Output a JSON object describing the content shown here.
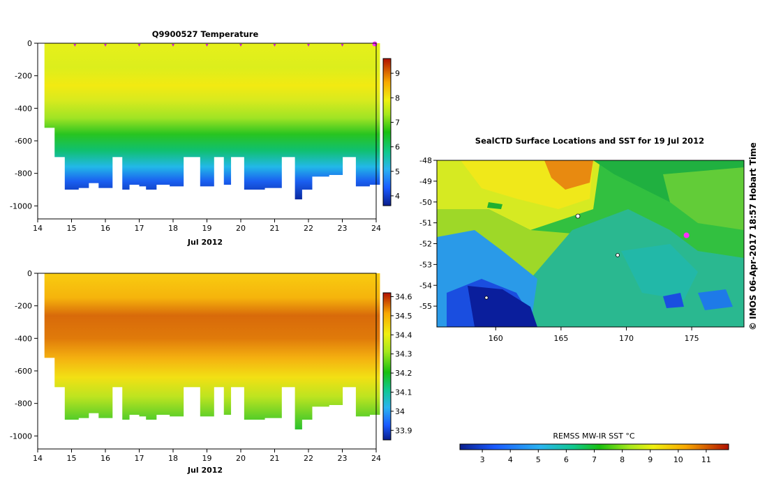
{
  "chart_data": [
    {
      "id": "temperature",
      "type": "heatmap",
      "title": "Q9900527  Temperature",
      "xlabel": "Jul 2012",
      "ylabel": "",
      "xlim": [
        14,
        24
      ],
      "ylim": [
        -1080,
        0
      ],
      "x_ticks": [
        "14",
        "15",
        "16",
        "17",
        "18",
        "19",
        "20",
        "21",
        "22",
        "23",
        "24"
      ],
      "y_ticks": [
        "0",
        "-200",
        "-400",
        "-600",
        "-800",
        "-1000"
      ],
      "y_tick_values": [
        0,
        -200,
        -400,
        -600,
        -800,
        -1000
      ],
      "colorbar": {
        "min": 3.6,
        "max": 9.6,
        "ticks": [
          "4",
          "5",
          "6",
          "7",
          "8",
          "9"
        ],
        "tick_values": [
          4,
          5,
          6,
          7,
          8,
          9
        ]
      },
      "profiles": [
        {
          "x0": 14.2,
          "x1": 14.5,
          "maxdepth": 520
        },
        {
          "x0": 14.5,
          "x1": 14.8,
          "maxdepth": 700
        },
        {
          "x0": 14.8,
          "x1": 15.2,
          "maxdepth": 900
        },
        {
          "x0": 15.2,
          "x1": 15.5,
          "maxdepth": 890
        },
        {
          "x0": 15.5,
          "x1": 15.8,
          "maxdepth": 860
        },
        {
          "x0": 15.8,
          "x1": 16.2,
          "maxdepth": 890
        },
        {
          "x0": 16.2,
          "x1": 16.5,
          "maxdepth": 700
        },
        {
          "x0": 16.5,
          "x1": 16.7,
          "maxdepth": 900
        },
        {
          "x0": 16.7,
          "x1": 17.0,
          "maxdepth": 870
        },
        {
          "x0": 17.0,
          "x1": 17.2,
          "maxdepth": 880
        },
        {
          "x0": 17.2,
          "x1": 17.5,
          "maxdepth": 900
        },
        {
          "x0": 17.5,
          "x1": 17.9,
          "maxdepth": 870
        },
        {
          "x0": 17.9,
          "x1": 18.3,
          "maxdepth": 880
        },
        {
          "x0": 18.3,
          "x1": 18.8,
          "maxdepth": 700
        },
        {
          "x0": 18.8,
          "x1": 19.2,
          "maxdepth": 880
        },
        {
          "x0": 19.2,
          "x1": 19.5,
          "maxdepth": 700
        },
        {
          "x0": 19.5,
          "x1": 19.7,
          "maxdepth": 870
        },
        {
          "x0": 19.7,
          "x1": 20.1,
          "maxdepth": 700
        },
        {
          "x0": 20.1,
          "x1": 20.7,
          "maxdepth": 900
        },
        {
          "x0": 20.7,
          "x1": 21.2,
          "maxdepth": 890
        },
        {
          "x0": 21.2,
          "x1": 21.6,
          "maxdepth": 700
        },
        {
          "x0": 21.6,
          "x1": 21.8,
          "maxdepth": 960
        },
        {
          "x0": 21.8,
          "x1": 22.1,
          "maxdepth": 900
        },
        {
          "x0": 22.1,
          "x1": 22.6,
          "maxdepth": 820
        },
        {
          "x0": 22.6,
          "x1": 23.0,
          "maxdepth": 810
        },
        {
          "x0": 23.0,
          "x1": 23.4,
          "maxdepth": 700
        },
        {
          "x0": 23.4,
          "x1": 23.8,
          "maxdepth": 880
        },
        {
          "x0": 23.8,
          "x1": 24.1,
          "maxdepth": 870
        }
      ],
      "surface_markers": [
        15.1,
        16.0,
        17.0,
        18.0,
        19.0,
        20.0,
        21.0,
        22.0,
        23.0
      ],
      "current_marker": 24.0
    },
    {
      "id": "salinity",
      "type": "heatmap",
      "title": "",
      "xlabel": "Jul 2012",
      "ylabel": "",
      "xlim": [
        14,
        24
      ],
      "ylim": [
        -1080,
        0
      ],
      "x_ticks": [
        "14",
        "15",
        "16",
        "17",
        "18",
        "19",
        "20",
        "21",
        "22",
        "23",
        "24"
      ],
      "y_ticks": [
        "0",
        "-200",
        "-400",
        "-600",
        "-800",
        "-1000"
      ],
      "y_tick_values": [
        0,
        -200,
        -400,
        -600,
        -800,
        -1000
      ],
      "colorbar": {
        "min": 33.85,
        "max": 34.62,
        "ticks": [
          "33.9",
          "34",
          "34.1",
          "34.2",
          "34.3",
          "34.4",
          "34.5",
          "34.6"
        ],
        "tick_values": [
          33.9,
          34.0,
          34.1,
          34.2,
          34.3,
          34.4,
          34.5,
          34.6
        ]
      }
    },
    {
      "id": "sst_map",
      "type": "heatmap",
      "title": "SealCTD Surface Locations and SST for 19 Jul 2012",
      "xlim": [
        155.5,
        179
      ],
      "ylim": [
        -56,
        -48
      ],
      "x_ticks": [
        "160",
        "165",
        "170",
        "175"
      ],
      "x_tick_values": [
        160,
        165,
        170,
        175
      ],
      "y_ticks": [
        "-48",
        "-49",
        "-50",
        "-51",
        "-52",
        "-53",
        "-54",
        "-55"
      ],
      "y_tick_values": [
        -48,
        -49,
        -50,
        -51,
        -52,
        -53,
        -54,
        -55
      ],
      "colorbar": {
        "label": "REMSS MW-IR SST °C",
        "min": 2.2,
        "max": 11.8,
        "ticks": [
          "3",
          "4",
          "5",
          "6",
          "7",
          "8",
          "9",
          "10",
          "11"
        ],
        "tick_values": [
          3,
          4,
          5,
          6,
          7,
          8,
          9,
          10,
          11
        ]
      },
      "seal_position": {
        "lon": 174.6,
        "lat": -51.6
      },
      "island_labels": [
        {
          "lon": 166.1,
          "lat": -50.7
        },
        {
          "lon": 169.1,
          "lat": -52.5
        },
        {
          "lon": 158.9,
          "lat": -54.6
        }
      ]
    }
  ],
  "credit": "© IMOS 06-Apr-2017 18:57 Hobart Time"
}
